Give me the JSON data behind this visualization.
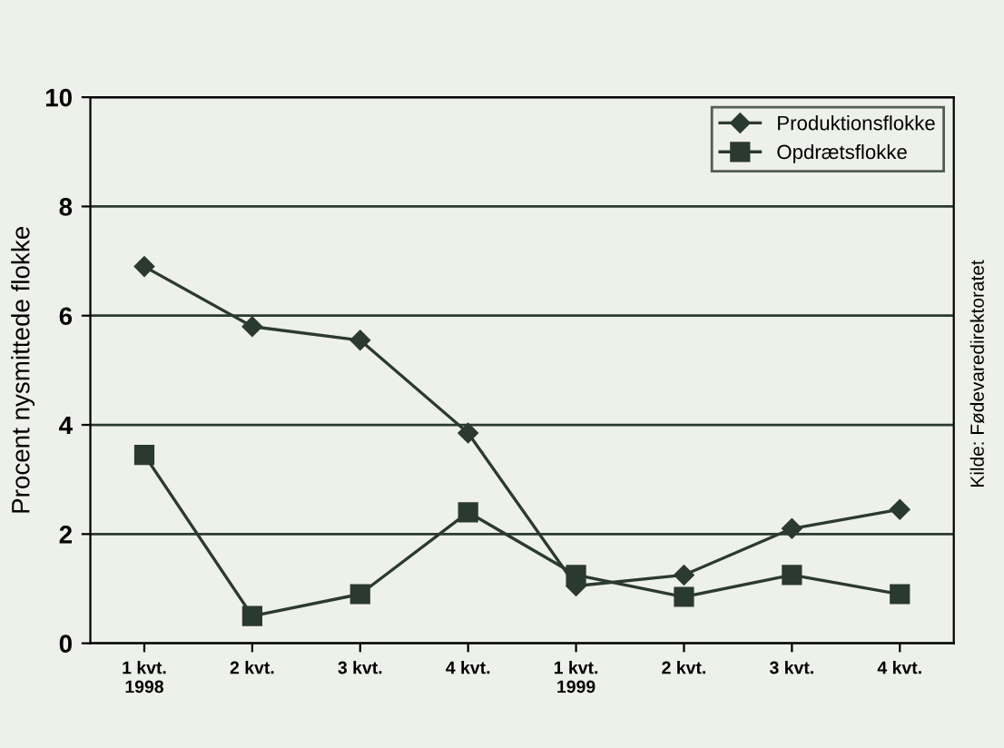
{
  "chart_data": {
    "type": "line",
    "ylabel": "Procent nysmittede flokke",
    "categories": [
      "1 kvt.\n1998",
      "2 kvt.",
      "3 kvt.",
      "4 kvt.",
      "1 kvt.\n1999",
      "2 kvt.",
      "3 kvt.",
      "4 kvt."
    ],
    "series": [
      {
        "name": "Produktionsflokke",
        "color": "#2b3a30",
        "values": [
          6.9,
          5.8,
          5.55,
          3.85,
          1.05,
          1.25,
          2.1,
          2.45
        ],
        "marker": "diamond"
      },
      {
        "name": "Opdrætsflokke",
        "color": "#2b3a30",
        "values": [
          3.45,
          0.5,
          0.9,
          2.4,
          1.25,
          0.85,
          1.25,
          0.9
        ],
        "marker": "square"
      }
    ],
    "ylim": [
      0,
      10
    ],
    "yticks": [
      0,
      2,
      4,
      6,
      8,
      10
    ],
    "grid": "y",
    "legend": "top right",
    "line_style": "solid",
    "annotations": [
      "Kilde: Fødevaredirektoratet"
    ]
  }
}
